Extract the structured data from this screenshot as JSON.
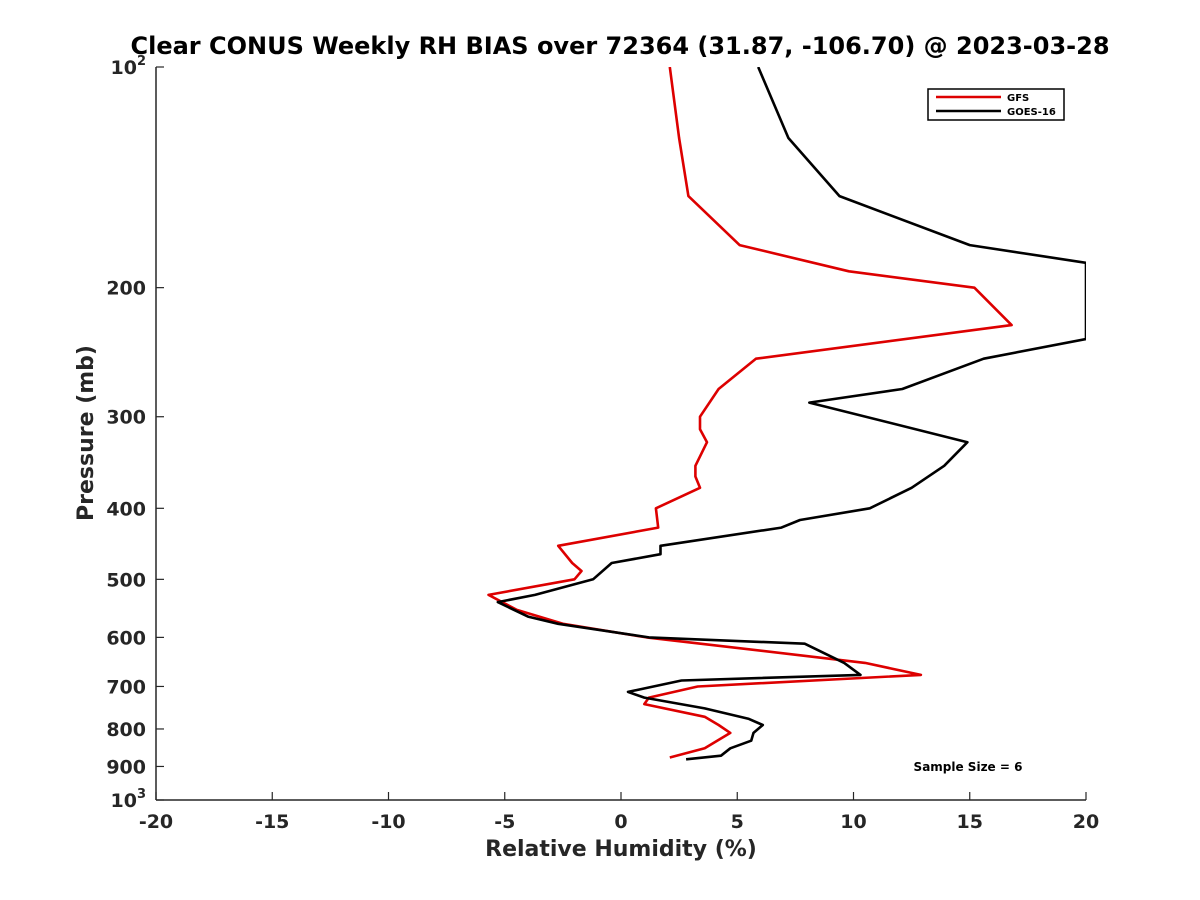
{
  "chart_data": {
    "type": "line",
    "title": "Clear CONUS Weekly RH BIAS over 72364 (31.87, -106.70) @ 2023-03-28",
    "xlabel": "Relative Humidity (%)",
    "ylabel": "Pressure (mb)",
    "xlim": [
      -20,
      20
    ],
    "ylim": [
      100,
      1000
    ],
    "y_scale": "log",
    "y_reversed": true,
    "x_ticks": [
      "-20",
      "-15",
      "-10",
      "-5",
      "0",
      "5",
      "10",
      "15",
      "20"
    ],
    "y_ticks": [
      {
        "value": 100,
        "base": "10",
        "exp": "2"
      },
      {
        "value": 200,
        "label": "200"
      },
      {
        "value": 300,
        "label": "300"
      },
      {
        "value": 400,
        "label": "400"
      },
      {
        "value": 500,
        "label": "500"
      },
      {
        "value": 600,
        "label": "600"
      },
      {
        "value": 700,
        "label": "700"
      },
      {
        "value": 800,
        "label": "800"
      },
      {
        "value": 900,
        "label": "900"
      },
      {
        "value": 1000,
        "base": "10",
        "exp": "3"
      }
    ],
    "legend_position": "top-right",
    "grid": false,
    "annotation": "Sample Size = 6",
    "series": [
      {
        "name": "GFS",
        "color": "#dd0000",
        "points": [
          [
            2.1,
            100
          ],
          [
            2.5,
            125
          ],
          [
            2.9,
            150
          ],
          [
            5.1,
            175
          ],
          [
            9.8,
            190
          ],
          [
            15.2,
            200
          ],
          [
            16.8,
            225
          ],
          [
            5.8,
            250
          ],
          [
            4.2,
            275
          ],
          [
            3.4,
            300
          ],
          [
            3.4,
            312
          ],
          [
            3.7,
            325
          ],
          [
            3.2,
            350
          ],
          [
            3.2,
            362
          ],
          [
            3.4,
            375
          ],
          [
            1.5,
            400
          ],
          [
            1.6,
            425
          ],
          [
            -2.7,
            450
          ],
          [
            -2.1,
            475
          ],
          [
            -1.7,
            487
          ],
          [
            -2.0,
            500
          ],
          [
            -5.7,
            525
          ],
          [
            -4.5,
            550
          ],
          [
            -2.5,
            575
          ],
          [
            1.1,
            600
          ],
          [
            10.5,
            650
          ],
          [
            12.9,
            675
          ],
          [
            3.3,
            700
          ],
          [
            1.2,
            725
          ],
          [
            1.0,
            740
          ],
          [
            3.6,
            770
          ],
          [
            4.2,
            790
          ],
          [
            4.7,
            810
          ],
          [
            3.6,
            850
          ],
          [
            2.1,
            875
          ]
        ]
      },
      {
        "name": "GOES-16",
        "color": "#000000",
        "points": [
          [
            5.9,
            100
          ],
          [
            7.2,
            125
          ],
          [
            9.4,
            150
          ],
          [
            15.0,
            175
          ],
          [
            20.0,
            185
          ],
          [
            20.0,
            235
          ],
          [
            15.6,
            250
          ],
          [
            12.1,
            275
          ],
          [
            8.1,
            287
          ],
          [
            14.9,
            325
          ],
          [
            13.9,
            350
          ],
          [
            12.5,
            375
          ],
          [
            10.7,
            400
          ],
          [
            7.7,
            415
          ],
          [
            6.9,
            425
          ],
          [
            1.7,
            450
          ],
          [
            1.7,
            462
          ],
          [
            -0.4,
            475
          ],
          [
            -1.2,
            500
          ],
          [
            -3.7,
            525
          ],
          [
            -5.3,
            537
          ],
          [
            -4.0,
            562
          ],
          [
            -2.7,
            575
          ],
          [
            1.2,
            600
          ],
          [
            7.9,
            612
          ],
          [
            9.6,
            650
          ],
          [
            10.3,
            675
          ],
          [
            2.6,
            687
          ],
          [
            0.3,
            712
          ],
          [
            1.0,
            725
          ],
          [
            3.6,
            750
          ],
          [
            5.5,
            775
          ],
          [
            6.1,
            790
          ],
          [
            5.7,
            810
          ],
          [
            5.6,
            830
          ],
          [
            4.7,
            850
          ],
          [
            4.3,
            870
          ],
          [
            2.8,
            880
          ]
        ]
      }
    ]
  }
}
